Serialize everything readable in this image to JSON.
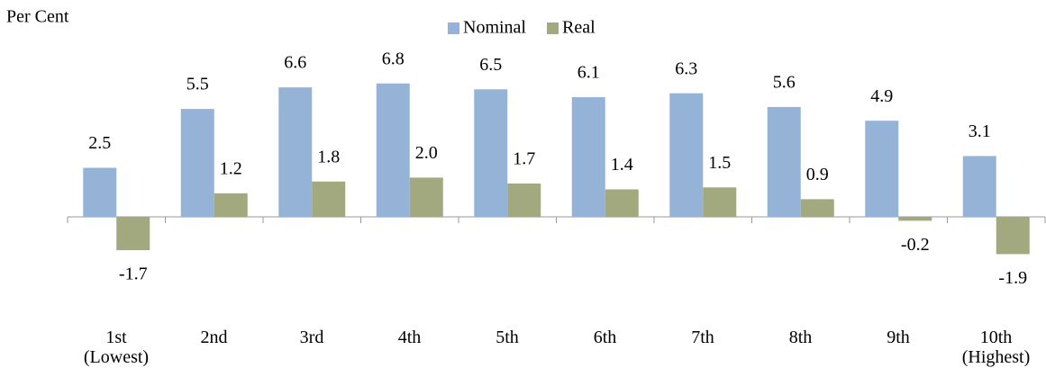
{
  "chart_data": {
    "type": "bar",
    "y_label": "Per Cent",
    "categories": [
      "1st\n(Lowest)",
      "2nd",
      "3rd",
      "4th",
      "5th",
      "6th",
      "7th",
      "8th",
      "9th",
      "10th\n(Highest)"
    ],
    "series": [
      {
        "name": "Nominal",
        "color": "#95b3d7",
        "values": [
          2.5,
          5.5,
          6.6,
          6.8,
          6.5,
          6.1,
          6.3,
          5.6,
          4.9,
          3.1
        ]
      },
      {
        "name": "Real",
        "color": "#a3a97f",
        "values": [
          -1.7,
          1.2,
          1.8,
          2.0,
          1.7,
          1.4,
          1.5,
          0.9,
          -0.2,
          -1.9
        ],
        "value_labels": [
          "-1.7",
          "1.2",
          "1.8",
          "2.0",
          "1.7",
          "1.4",
          "1.5",
          "0.9",
          "-0.2",
          "-1.9"
        ]
      }
    ],
    "ylim": [
      -4,
      8
    ],
    "legend": "top"
  }
}
